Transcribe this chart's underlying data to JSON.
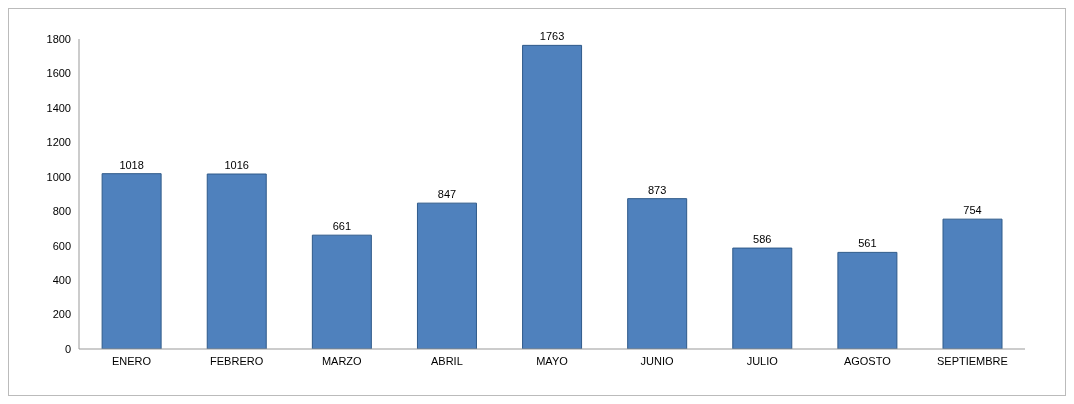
{
  "chart_data": {
    "type": "bar",
    "categories": [
      "ENERO",
      "FEBRERO",
      "MARZO",
      "ABRIL",
      "MAYO",
      "JUNIO",
      "JULIO",
      "AGOSTO",
      "SEPTIEMBRE"
    ],
    "values": [
      1018,
      1016,
      661,
      847,
      1763,
      873,
      586,
      561,
      754
    ],
    "color": "#4f81bd",
    "ylim": [
      0,
      1800
    ],
    "yticks": [
      0,
      200,
      400,
      600,
      800,
      1000,
      1200,
      1400,
      1600,
      1800
    ],
    "data_labels": true
  }
}
